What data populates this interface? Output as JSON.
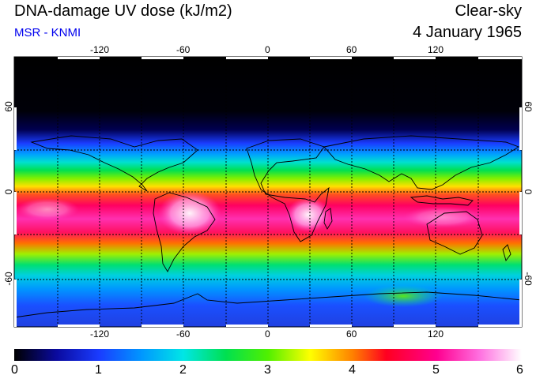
{
  "title": "DNA-damage UV dose (kJ/m2)",
  "source": "MSR - KNMI",
  "condition": "Clear-sky",
  "date": "4 January 1965",
  "map": {
    "lon_ticks": [
      "-120",
      "-60",
      "0",
      "60",
      "120"
    ],
    "lat_ticks": [
      "60",
      "0",
      "-60"
    ],
    "lat_ticks_right": [
      "60",
      "0",
      "-60"
    ]
  },
  "colorbar": {
    "labels": [
      "0",
      "1",
      "2",
      "3",
      "4",
      "5",
      "6"
    ],
    "min": 0,
    "max": 6,
    "stops": [
      {
        "value": 0,
        "color": "#000000"
      },
      {
        "value": 0.5,
        "color": "#0a0a9e"
      },
      {
        "value": 1.0,
        "color": "#1a3cff"
      },
      {
        "value": 1.5,
        "color": "#0096ff"
      },
      {
        "value": 2.0,
        "color": "#00e6e6"
      },
      {
        "value": 2.5,
        "color": "#00e050"
      },
      {
        "value": 3.0,
        "color": "#50f000"
      },
      {
        "value": 3.5,
        "color": "#ffff00"
      },
      {
        "value": 4.0,
        "color": "#ff8000"
      },
      {
        "value": 4.4,
        "color": "#ff0020"
      },
      {
        "value": 5.0,
        "color": "#ff0090"
      },
      {
        "value": 5.5,
        "color": "#ff70e0"
      },
      {
        "value": 6.0,
        "color": "#ffffff"
      }
    ]
  }
}
